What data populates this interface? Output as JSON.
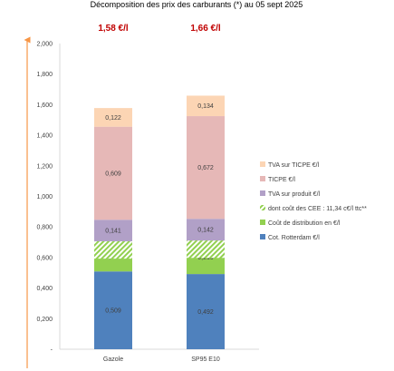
{
  "chart_data": {
    "type": "bar",
    "stacked": true,
    "title": "Décomposition des prix des carburants (*) au 05 sept 2025",
    "categories": [
      "Gazole",
      "SP95 E10"
    ],
    "totals": [
      "1,58 €/l",
      "1,66 €/l"
    ],
    "ylim": [
      0,
      2.0
    ],
    "yticks": [
      "-",
      "0,200",
      "0,400",
      "0,600",
      "0,800",
      "1,000",
      "1,200",
      "1,400",
      "1,600",
      "1,800",
      "2,000"
    ],
    "grid": false,
    "legend_position": "right",
    "series": [
      {
        "name": "Cot. Rotterdam €/l",
        "color": "#4f81bd",
        "values": [
          0.509,
          0.492
        ],
        "labels": [
          "0,509",
          "0,492"
        ]
      },
      {
        "name": "Coût de distribution en €/l",
        "color": "#92d050",
        "values": [
          0.197,
          0.219
        ],
        "labels": [
          "0,197",
          "0,219"
        ]
      },
      {
        "name": "dont coût des CEE : 11,34 c€/l ttc**",
        "color": "#92d050",
        "pattern": "hatch",
        "values": [
          0.1134,
          0.1134
        ],
        "overlay_end": "coût de distribution"
      },
      {
        "name": "TVA sur produit €/l",
        "color": "#b1a0c7",
        "values": [
          0.141,
          0.142
        ],
        "labels": [
          "0,141",
          "0,142"
        ]
      },
      {
        "name": "TICPE €/l",
        "color": "#e6b8b7",
        "values": [
          0.609,
          0.672
        ],
        "labels": [
          "0,609",
          "0,672"
        ]
      },
      {
        "name": "TVA sur TICPE €/l",
        "color": "#fcd5b4",
        "values": [
          0.122,
          0.134
        ],
        "labels": [
          "0,122",
          "0,134"
        ]
      }
    ]
  }
}
